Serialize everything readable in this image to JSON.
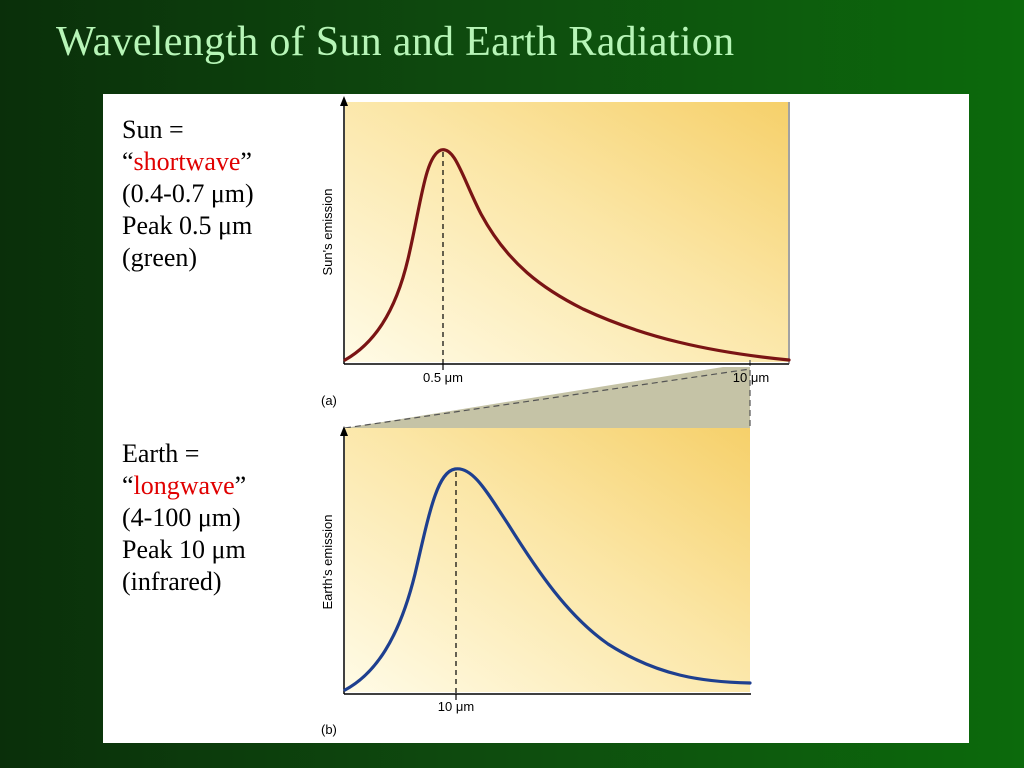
{
  "slide": {
    "title": "Wavelength of Sun and Earth Radiation"
  },
  "colors": {
    "background": "#0e4a0e",
    "title": "#b7f5b7",
    "accent": "#e00000",
    "sun_curve": "#7a1414",
    "earth_curve": "#1e3f8f",
    "plot_fill": "#f8d574",
    "zoom_wedge": "#c5c3a6"
  },
  "sun_caption": {
    "line1": "Sun =",
    "open_quote": "“",
    "keyword": "shortwave",
    "close_quote": "”",
    "line3": "(0.4-0.7 μm)",
    "line4": "Peak 0.5 μm",
    "line5": "(green)"
  },
  "earth_caption": {
    "line1": "Earth =",
    "open_quote": "“",
    "keyword": "longwave",
    "close_quote": "”",
    "line3": "(4-100 μm)",
    "line4": "Peak 10 μm",
    "line5": "(infrared)"
  },
  "figure": {
    "sun": {
      "ylabel": "Sun's emission",
      "peak_label": "0.5 μm",
      "end_label": "10 μm",
      "panel_label": "(a)"
    },
    "earth": {
      "ylabel": "Earth's emission",
      "peak_label": "10 μm",
      "panel_label": "(b)"
    }
  }
}
